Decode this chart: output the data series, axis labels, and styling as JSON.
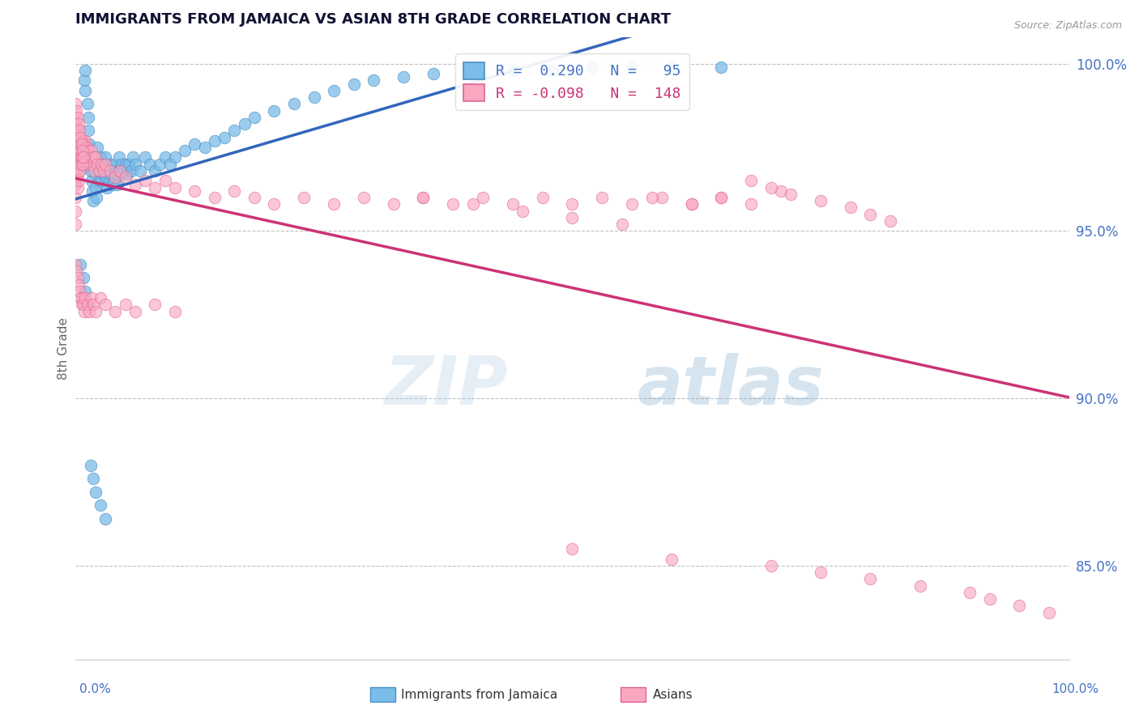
{
  "title": "IMMIGRANTS FROM JAMAICA VS ASIAN 8TH GRADE CORRELATION CHART",
  "source_text": "Source: ZipAtlas.com",
  "ylabel": "8th Grade",
  "ytick_labels": [
    "100.0%",
    "95.0%",
    "90.0%",
    "85.0%"
  ],
  "ytick_values": [
    1.0,
    0.95,
    0.9,
    0.85
  ],
  "xmin": 0.0,
  "xmax": 1.0,
  "ymin": 0.822,
  "ymax": 1.008,
  "blue_R": 0.29,
  "blue_N": 95,
  "pink_R": -0.098,
  "pink_N": 148,
  "blue_color": "#7bbce8",
  "pink_color": "#f9a8c0",
  "blue_edge_color": "#4a90c4",
  "pink_edge_color": "#e06090",
  "blue_line_color": "#3366bb",
  "pink_line_color": "#cc3377",
  "title_color": "#111133",
  "axis_label_color": "#4472c4",
  "watermark": "ZIPatlas",
  "legend_text_blue": "R =  0.290   N =   95",
  "legend_text_pink": "R = -0.098   N =  148",
  "blue_scatter_x": [
    0.005,
    0.007,
    0.008,
    0.009,
    0.01,
    0.01,
    0.012,
    0.013,
    0.013,
    0.014,
    0.015,
    0.015,
    0.016,
    0.017,
    0.018,
    0.019,
    0.02,
    0.02,
    0.021,
    0.022,
    0.022,
    0.023,
    0.024,
    0.025,
    0.025,
    0.026,
    0.027,
    0.028,
    0.029,
    0.03,
    0.03,
    0.031,
    0.032,
    0.033,
    0.034,
    0.035,
    0.036,
    0.037,
    0.038,
    0.039,
    0.04,
    0.041,
    0.042,
    0.043,
    0.044,
    0.045,
    0.046,
    0.047,
    0.048,
    0.05,
    0.052,
    0.054,
    0.056,
    0.058,
    0.06,
    0.065,
    0.07,
    0.075,
    0.08,
    0.085,
    0.09,
    0.095,
    0.1,
    0.11,
    0.12,
    0.13,
    0.14,
    0.15,
    0.16,
    0.17,
    0.18,
    0.2,
    0.22,
    0.24,
    0.26,
    0.28,
    0.3,
    0.33,
    0.36,
    0.4,
    0.44,
    0.48,
    0.52,
    0.56,
    0.6,
    0.65,
    0.005,
    0.008,
    0.01,
    0.012,
    0.015,
    0.018,
    0.02,
    0.025,
    0.03
  ],
  "blue_scatter_y": [
    0.975,
    0.972,
    0.969,
    0.995,
    0.998,
    0.992,
    0.988,
    0.984,
    0.98,
    0.976,
    0.972,
    0.968,
    0.965,
    0.962,
    0.959,
    0.97,
    0.967,
    0.963,
    0.96,
    0.975,
    0.971,
    0.968,
    0.965,
    0.972,
    0.968,
    0.965,
    0.97,
    0.967,
    0.964,
    0.972,
    0.968,
    0.966,
    0.963,
    0.968,
    0.965,
    0.97,
    0.967,
    0.964,
    0.968,
    0.965,
    0.97,
    0.967,
    0.964,
    0.968,
    0.972,
    0.968,
    0.97,
    0.967,
    0.968,
    0.97,
    0.967,
    0.97,
    0.968,
    0.972,
    0.97,
    0.968,
    0.972,
    0.97,
    0.968,
    0.97,
    0.972,
    0.97,
    0.972,
    0.974,
    0.976,
    0.975,
    0.977,
    0.978,
    0.98,
    0.982,
    0.984,
    0.986,
    0.988,
    0.99,
    0.992,
    0.994,
    0.995,
    0.996,
    0.997,
    0.997,
    0.998,
    0.998,
    0.999,
    0.999,
    0.999,
    0.999,
    0.94,
    0.936,
    0.932,
    0.928,
    0.88,
    0.876,
    0.872,
    0.868,
    0.864
  ],
  "pink_scatter_x": [
    0.0,
    0.0,
    0.0,
    0.0,
    0.0,
    0.0,
    0.0,
    0.0,
    0.001,
    0.001,
    0.001,
    0.001,
    0.002,
    0.002,
    0.002,
    0.002,
    0.003,
    0.003,
    0.003,
    0.003,
    0.004,
    0.004,
    0.004,
    0.005,
    0.005,
    0.005,
    0.006,
    0.006,
    0.007,
    0.007,
    0.008,
    0.008,
    0.009,
    0.009,
    0.01,
    0.01,
    0.011,
    0.012,
    0.013,
    0.014,
    0.015,
    0.016,
    0.017,
    0.018,
    0.019,
    0.02,
    0.022,
    0.024,
    0.026,
    0.028,
    0.03,
    0.035,
    0.04,
    0.045,
    0.05,
    0.06,
    0.07,
    0.08,
    0.09,
    0.1,
    0.12,
    0.14,
    0.16,
    0.18,
    0.2,
    0.23,
    0.26,
    0.29,
    0.32,
    0.35,
    0.38,
    0.41,
    0.44,
    0.47,
    0.5,
    0.53,
    0.56,
    0.59,
    0.62,
    0.65,
    0.68,
    0.71,
    0.0,
    0.001,
    0.002,
    0.003,
    0.004,
    0.005,
    0.006,
    0.007,
    0.008,
    0.009,
    0.01,
    0.012,
    0.014,
    0.016,
    0.018,
    0.02,
    0.025,
    0.03,
    0.04,
    0.05,
    0.06,
    0.08,
    0.1,
    0.35,
    0.4,
    0.45,
    0.5,
    0.55,
    0.58,
    0.62,
    0.65,
    0.68,
    0.7,
    0.72,
    0.75,
    0.78,
    0.8,
    0.82,
    0.5,
    0.6,
    0.7,
    0.75,
    0.8,
    0.85,
    0.9,
    0.92,
    0.95,
    0.98,
    0.0,
    0.0,
    0.001,
    0.001,
    0.002,
    0.002,
    0.003,
    0.003,
    0.004,
    0.004,
    0.005,
    0.005,
    0.006,
    0.006,
    0.007,
    0.007,
    0.008
  ],
  "pink_scatter_y": [
    0.98,
    0.976,
    0.972,
    0.968,
    0.964,
    0.96,
    0.956,
    0.952,
    0.978,
    0.974,
    0.97,
    0.966,
    0.975,
    0.971,
    0.967,
    0.963,
    0.977,
    0.973,
    0.969,
    0.965,
    0.976,
    0.972,
    0.968,
    0.978,
    0.974,
    0.97,
    0.975,
    0.971,
    0.977,
    0.973,
    0.976,
    0.972,
    0.975,
    0.971,
    0.977,
    0.973,
    0.975,
    0.972,
    0.974,
    0.97,
    0.972,
    0.974,
    0.97,
    0.972,
    0.968,
    0.972,
    0.97,
    0.968,
    0.97,
    0.968,
    0.97,
    0.968,
    0.966,
    0.968,
    0.966,
    0.964,
    0.965,
    0.963,
    0.965,
    0.963,
    0.962,
    0.96,
    0.962,
    0.96,
    0.958,
    0.96,
    0.958,
    0.96,
    0.958,
    0.96,
    0.958,
    0.96,
    0.958,
    0.96,
    0.958,
    0.96,
    0.958,
    0.96,
    0.958,
    0.96,
    0.958,
    0.962,
    0.94,
    0.938,
    0.936,
    0.934,
    0.932,
    0.93,
    0.928,
    0.93,
    0.928,
    0.926,
    0.93,
    0.928,
    0.926,
    0.93,
    0.928,
    0.926,
    0.93,
    0.928,
    0.926,
    0.928,
    0.926,
    0.928,
    0.926,
    0.96,
    0.958,
    0.956,
    0.954,
    0.952,
    0.96,
    0.958,
    0.96,
    0.965,
    0.963,
    0.961,
    0.959,
    0.957,
    0.955,
    0.953,
    0.855,
    0.852,
    0.85,
    0.848,
    0.846,
    0.844,
    0.842,
    0.84,
    0.838,
    0.836,
    0.988,
    0.984,
    0.986,
    0.982,
    0.984,
    0.98,
    0.982,
    0.978,
    0.98,
    0.976,
    0.978,
    0.974,
    0.976,
    0.972,
    0.974,
    0.97,
    0.972
  ]
}
